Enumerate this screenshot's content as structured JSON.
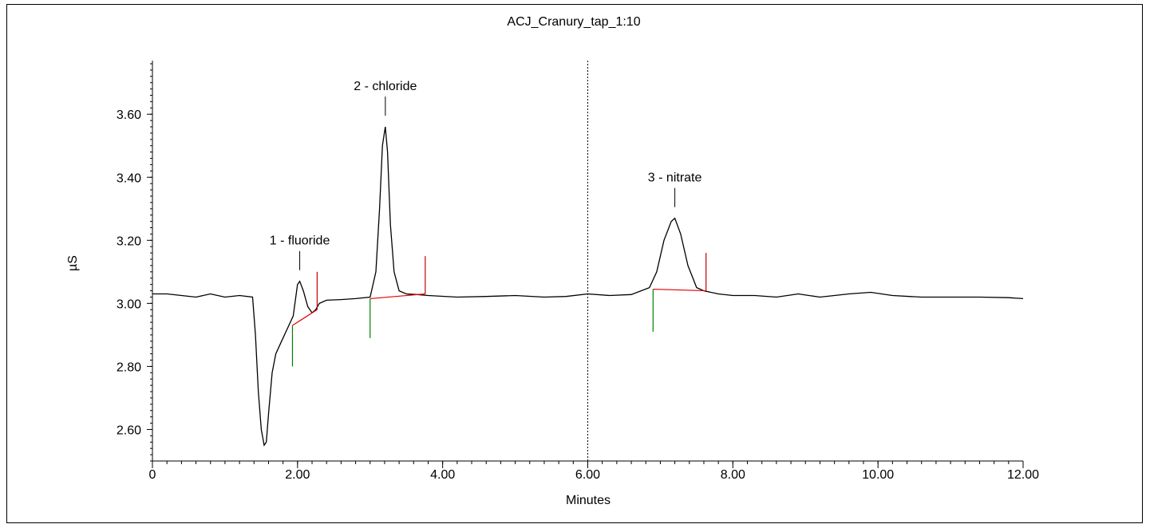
{
  "chart_data": {
    "type": "line",
    "title": "ACJ_Cranury_tap_1:10",
    "xlabel": "Minutes",
    "ylabel": "µS",
    "xlim": [
      0,
      12
    ],
    "ylim": [
      2.5,
      3.77
    ],
    "x_ticks": [
      {
        "value": 0,
        "label": "0"
      },
      {
        "value": 2,
        "label": "2.00"
      },
      {
        "value": 4,
        "label": "4.00"
      },
      {
        "value": 6,
        "label": "6.00"
      },
      {
        "value": 8,
        "label": "8.00"
      },
      {
        "value": 10,
        "label": "10.00"
      },
      {
        "value": 12,
        "label": "12.00"
      }
    ],
    "y_ticks": [
      {
        "value": 2.6,
        "label": "2.60"
      },
      {
        "value": 2.8,
        "label": "2.80"
      },
      {
        "value": 3.0,
        "label": "3.00"
      },
      {
        "value": 3.2,
        "label": "3.20"
      },
      {
        "value": 3.4,
        "label": "3.40"
      },
      {
        "value": 3.6,
        "label": "3.60"
      }
    ],
    "grid": false,
    "marker_line_x": 6.0,
    "series": [
      {
        "color": "#000000",
        "x": [
          0,
          0.2,
          0.4,
          0.6,
          0.8,
          1.0,
          1.2,
          1.38,
          1.42,
          1.46,
          1.5,
          1.54,
          1.57,
          1.6,
          1.65,
          1.7,
          1.78,
          1.86,
          1.94,
          2.0,
          2.03,
          2.08,
          2.14,
          2.2,
          2.25,
          2.3,
          2.4,
          2.6,
          2.8,
          3.0,
          3.08,
          3.13,
          3.17,
          3.21,
          3.24,
          3.28,
          3.33,
          3.4,
          3.5,
          3.65,
          3.8,
          4.2,
          4.6,
          5.0,
          5.4,
          5.7,
          6.0,
          6.3,
          6.6,
          6.85,
          6.95,
          7.05,
          7.15,
          7.2,
          7.28,
          7.38,
          7.5,
          7.6,
          7.8,
          8.0,
          8.3,
          8.6,
          8.9,
          9.2,
          9.6,
          9.9,
          10.2,
          10.6,
          11.0,
          11.4,
          11.8,
          12.0
        ],
        "y": [
          3.03,
          3.03,
          3.025,
          3.02,
          3.03,
          3.02,
          3.025,
          3.02,
          2.9,
          2.72,
          2.6,
          2.55,
          2.56,
          2.65,
          2.78,
          2.84,
          2.88,
          2.92,
          2.96,
          3.06,
          3.07,
          3.04,
          2.99,
          2.97,
          2.98,
          3.0,
          3.01,
          3.012,
          3.015,
          3.02,
          3.1,
          3.3,
          3.5,
          3.56,
          3.48,
          3.25,
          3.1,
          3.04,
          3.03,
          3.028,
          3.025,
          3.02,
          3.022,
          3.025,
          3.02,
          3.022,
          3.03,
          3.025,
          3.028,
          3.05,
          3.1,
          3.2,
          3.26,
          3.27,
          3.22,
          3.12,
          3.05,
          3.04,
          3.03,
          3.025,
          3.025,
          3.02,
          3.03,
          3.02,
          3.03,
          3.035,
          3.025,
          3.02,
          3.02,
          3.02,
          3.018,
          3.015
        ]
      }
    ],
    "baselines": [
      {
        "color": "#e00000",
        "x": [
          1.93,
          2.27
        ],
        "y": [
          2.93,
          2.98
        ]
      },
      {
        "color": "#e00000",
        "x": [
          3.0,
          3.76
        ],
        "y": [
          3.015,
          3.03
        ]
      },
      {
        "color": "#e00000",
        "x": [
          6.9,
          7.63
        ],
        "y": [
          3.045,
          3.04
        ]
      }
    ],
    "peak_marks": [
      {
        "x": 1.93,
        "y_from": 2.8,
        "y_to": 2.93,
        "color": "#008000"
      },
      {
        "x": 2.27,
        "y_from": 2.98,
        "y_to": 3.1,
        "color": "#c00000"
      },
      {
        "x": 3.0,
        "y_from": 2.89,
        "y_to": 3.015,
        "color": "#008000"
      },
      {
        "x": 3.76,
        "y_from": 3.03,
        "y_to": 3.15,
        "color": "#c00000"
      },
      {
        "x": 6.9,
        "y_from": 2.91,
        "y_to": 3.045,
        "color": "#008000"
      },
      {
        "x": 7.63,
        "y_from": 3.04,
        "y_to": 3.16,
        "color": "#c00000"
      }
    ],
    "annotations": [
      {
        "label": "1 - fluoride",
        "x": 2.03,
        "y": 3.08
      },
      {
        "label": "2 - chloride",
        "x": 3.21,
        "y": 3.57
      },
      {
        "label": "3 - nitrate",
        "x": 7.2,
        "y": 3.28
      }
    ]
  }
}
